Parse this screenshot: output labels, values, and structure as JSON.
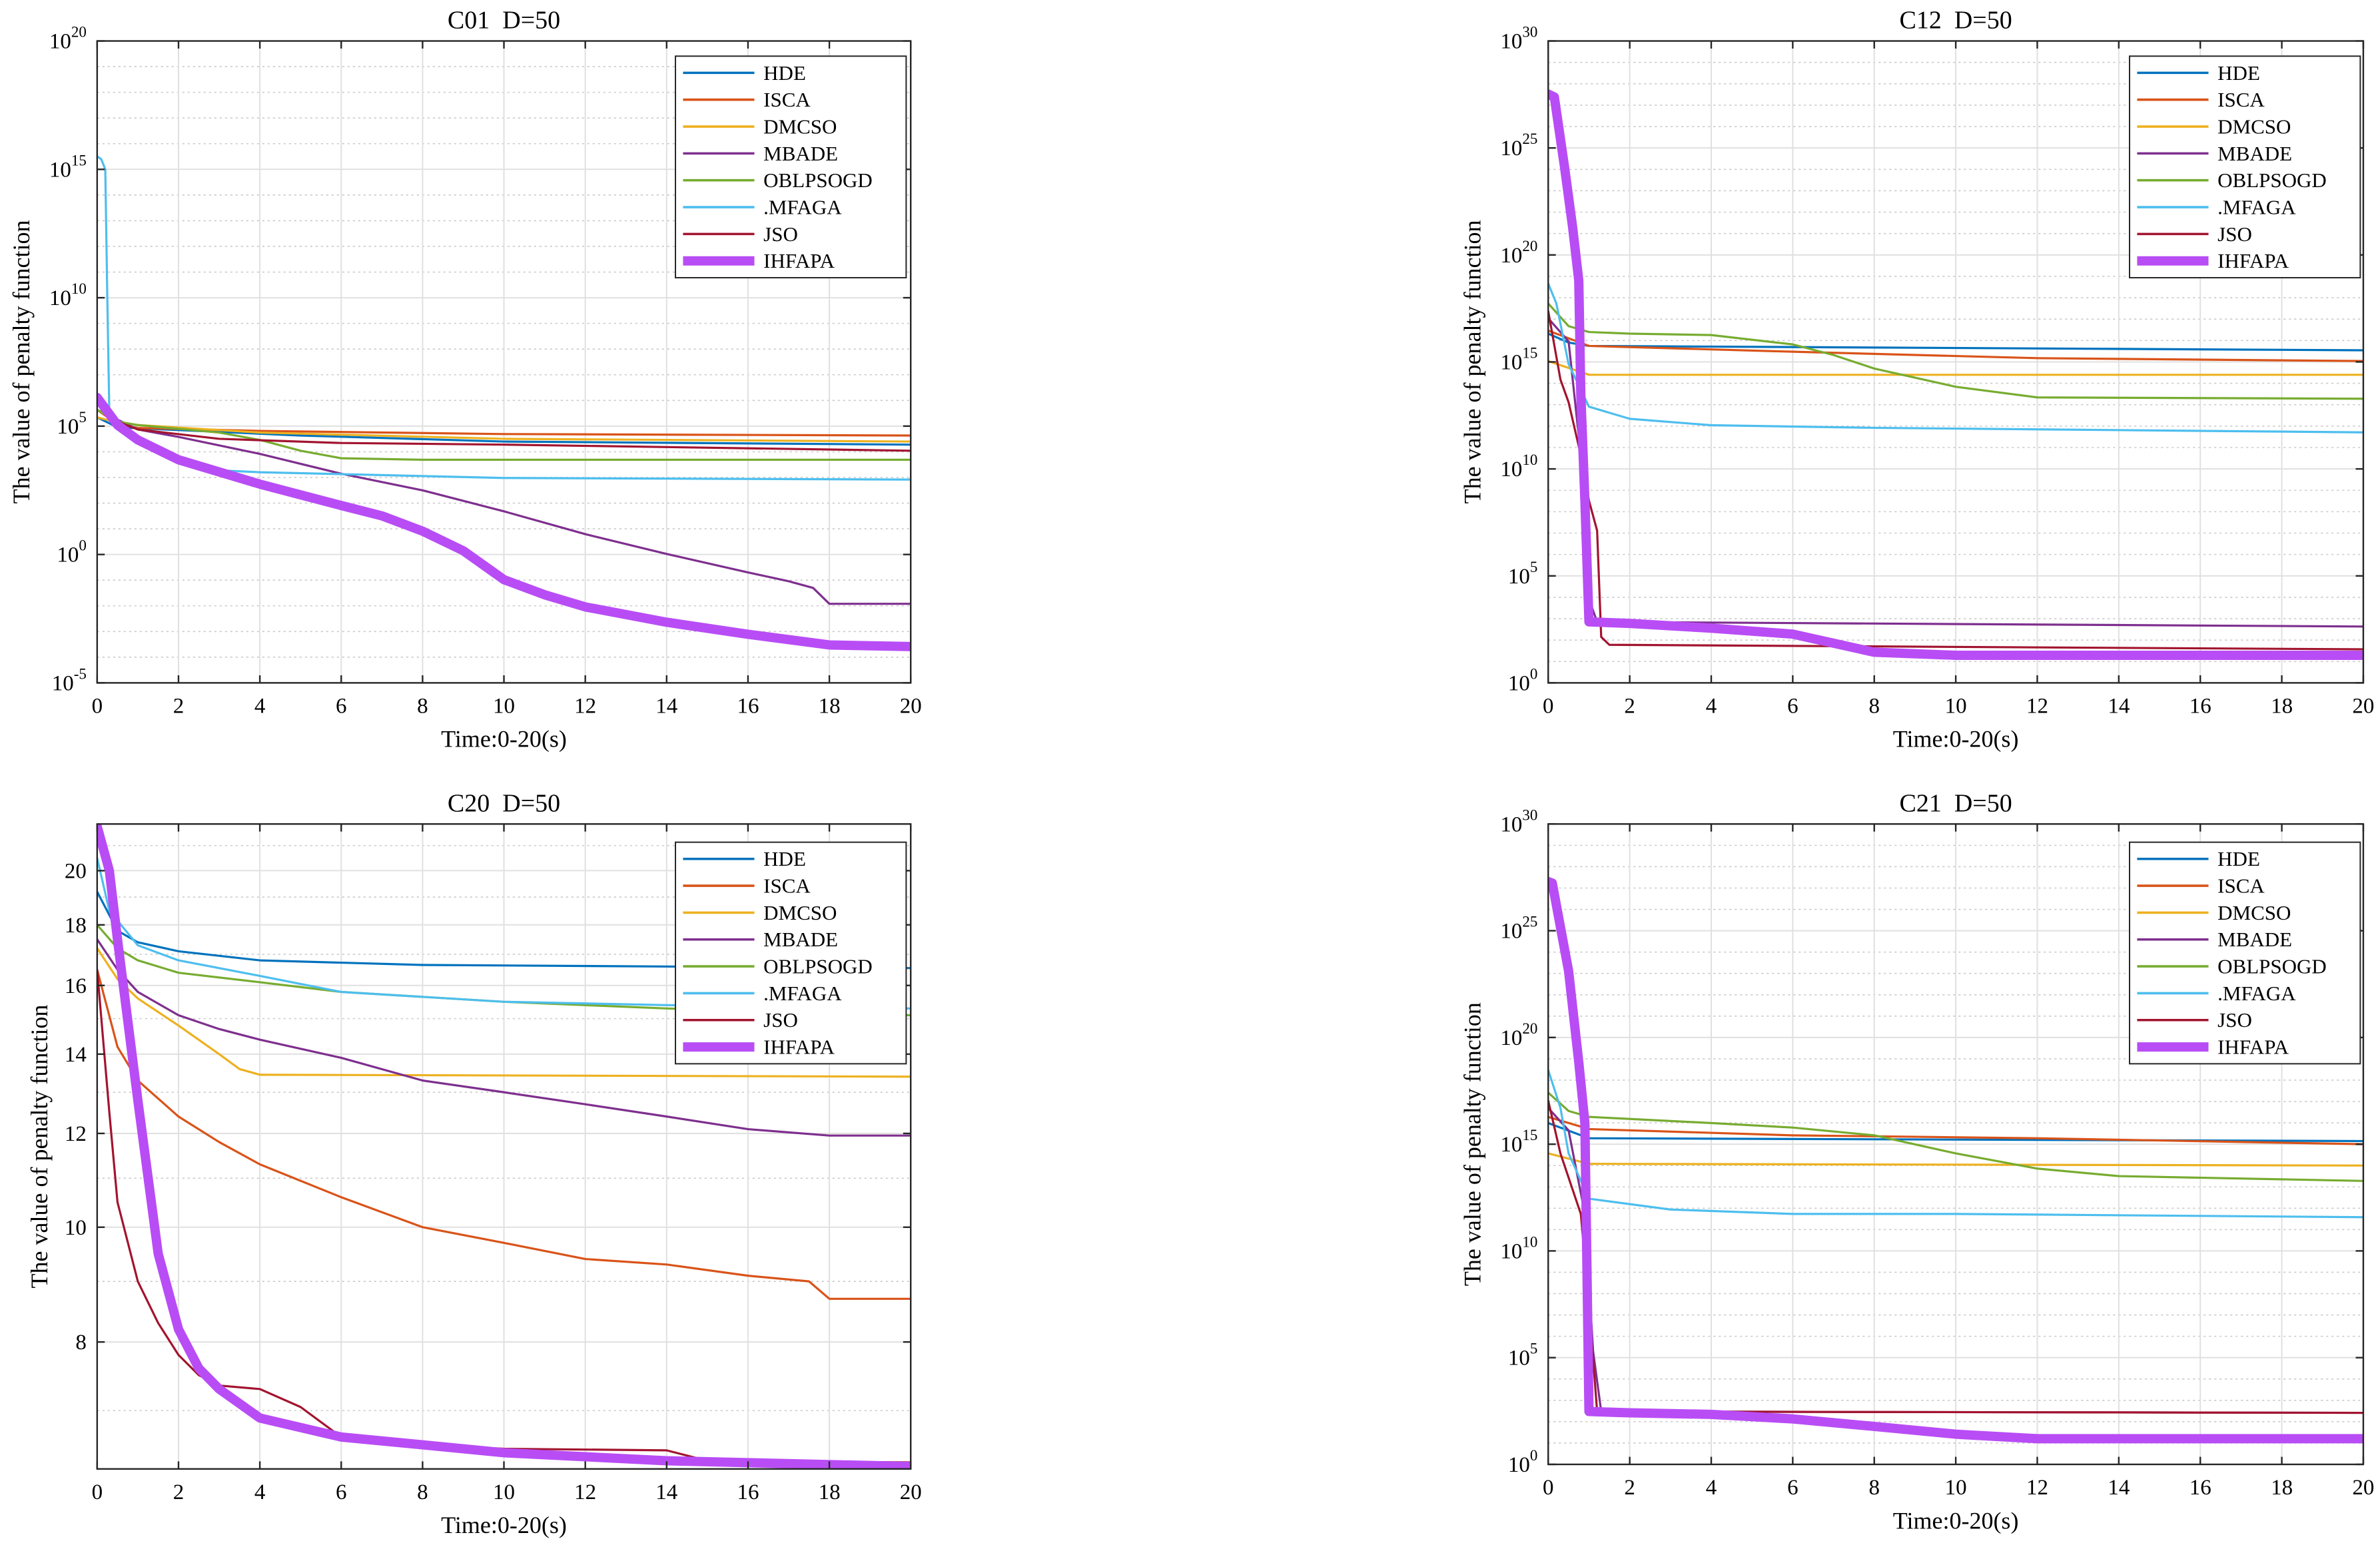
{
  "chart_data": [
    {
      "type": "line",
      "title": "C01  D=50",
      "xlabel": "Time:0-20(s)",
      "ylabel": "The value of penalty function",
      "xlim": [
        0,
        20
      ],
      "xticks": [
        "0",
        "2",
        "4",
        "6",
        "8",
        "10",
        "12",
        "14",
        "16",
        "18",
        "20"
      ],
      "yscale": "log",
      "ylim": [
        1e-05,
        1e+20
      ],
      "yticks": [
        {
          "base": "10",
          "exp": "-5"
        },
        {
          "base": "10",
          "exp": "0"
        },
        {
          "base": "10",
          "exp": "5"
        },
        {
          "base": "10",
          "exp": "10"
        },
        {
          "base": "10",
          "exp": "15"
        },
        {
          "base": "10",
          "exp": "20"
        }
      ],
      "grid": true,
      "legend": "top-right",
      "series": [
        {
          "name": "HDE",
          "color": "#0072BD",
          "x": [
            0,
            0.5,
            2,
            5,
            10,
            20
          ],
          "y": [
            220000.0,
            90000.0,
            70000.0,
            43000.0,
            25000.0,
            19000.0
          ]
        },
        {
          "name": "ISCA",
          "color": "#D95319",
          "x": [
            0,
            0.5,
            1,
            4,
            10,
            20
          ],
          "y": [
            430000.0,
            120000.0,
            85000.0,
            65000.0,
            49000.0,
            43000.0
          ]
        },
        {
          "name": "DMCSO",
          "color": "#EDB120",
          "x": [
            0,
            0.5,
            1,
            4,
            10,
            20
          ],
          "y": [
            220000.0,
            140000.0,
            110000.0,
            56000.0,
            32000.0,
            25000.0
          ]
        },
        {
          "name": "MBADE",
          "color": "#7E2F8E",
          "x": [
            0,
            1,
            2,
            4,
            6,
            8,
            10,
            12,
            14,
            16,
            17,
            17.6,
            18,
            20
          ],
          "y": [
            430000.0,
            74000.0,
            38000.0,
            8300.0,
            1400.0,
            316,
            48,
            6.2,
            1.05,
            0.2,
            0.091,
            0.05,
            0.012,
            0.012
          ]
        },
        {
          "name": "OBLPSOGD",
          "color": "#77AC30",
          "x": [
            0,
            0.5,
            1,
            3,
            4,
            5,
            6,
            8,
            20
          ],
          "y": [
            430000.0,
            150000.0,
            110000.0,
            56000.0,
            29000.0,
            11000.0,
            5600.0,
            4900.0,
            4900.0
          ]
        },
        {
          "name": ".MFAGA",
          "color": "#4DBEEE",
          "x": [
            0,
            0.1,
            0.15,
            0.2,
            0.25,
            0.3,
            0.5,
            1,
            2,
            3,
            4,
            10,
            20
          ],
          "y": [
            3200000000000000.0,
            2500000000000000.0,
            1600000000000000.0,
            1000000000000000.0,
            10000000000.0,
            300000.0,
            80000.0,
            22000.0,
            3700.0,
            1900.0,
            1600.0,
            955,
            830
          ]
        },
        {
          "name": "JSO",
          "color": "#A2142F",
          "x": [
            0,
            0.5,
            1,
            3,
            6,
            10,
            20
          ],
          "y": [
            850000.0,
            150000.0,
            74000.0,
            32000.0,
            22000.0,
            19000.0,
            11000.0
          ]
        },
        {
          "name": "IHFAPA",
          "color": "#B84DF5",
          "x": [
            0,
            0.5,
            1,
            2,
            4,
            6,
            7,
            8,
            9,
            10,
            11,
            12,
            14,
            16,
            18,
            20
          ],
          "y": [
            1300000.0,
            110000.0,
            29000.0,
            4900.0,
            550,
            81,
            32,
            8.1,
            1.4,
            0.105,
            0.027,
            0.0091,
            0.0023,
            0.00078,
            0.0003,
            0.00026
          ]
        }
      ]
    },
    {
      "type": "line",
      "title": "C12  D=50",
      "xlabel": "Time:0-20(s)",
      "ylabel": "The value of penalty function",
      "xlim": [
        0,
        20
      ],
      "xticks": [
        "0",
        "2",
        "4",
        "6",
        "8",
        "10",
        "12",
        "14",
        "16",
        "18",
        "20"
      ],
      "yscale": "log",
      "ylim": [
        1,
        1e+30
      ],
      "yticks": [
        {
          "base": "10",
          "exp": "0"
        },
        {
          "base": "10",
          "exp": "5"
        },
        {
          "base": "10",
          "exp": "10"
        },
        {
          "base": "10",
          "exp": "15"
        },
        {
          "base": "10",
          "exp": "20"
        },
        {
          "base": "10",
          "exp": "25"
        },
        {
          "base": "10",
          "exp": "30"
        }
      ],
      "grid": true,
      "legend": "top-right",
      "series": [
        {
          "name": "HDE",
          "color": "#0072BD",
          "x": [
            0,
            0.5,
            1,
            20
          ],
          "y": [
            2.1e+16,
            8000000000000000.0,
            5600000000000000.0,
            3500000000000000.0
          ]
        },
        {
          "name": "ISCA",
          "color": "#D95319",
          "x": [
            0,
            1,
            6,
            12,
            20
          ],
          "y": [
            2.9e+16,
            5600000000000000.0,
            3000000000000000.0,
            1500000000000000.0,
            1100000000000000.0
          ]
        },
        {
          "name": "DMCSO",
          "color": "#EDB120",
          "x": [
            0,
            1,
            20
          ],
          "y": [
            1100000000000000.0,
            250000000000000.0,
            250000000000000.0
          ]
        },
        {
          "name": "MBADE",
          "color": "#7E2F8E",
          "x": [
            0,
            0.5,
            0.8,
            1,
            1.2,
            20
          ],
          "y": [
            1.1e+17,
            9100000000000000.0,
            44000000000.0,
            8100.0,
            710,
            430
          ]
        },
        {
          "name": "OBLPSOGD",
          "color": "#77AC30",
          "x": [
            0,
            0.5,
            1,
            2,
            4,
            6,
            7,
            8,
            10,
            12,
            20
          ],
          "y": [
            5.4e+17,
            4.7e+16,
            2.5e+16,
            2.1e+16,
            1.8e+16,
            6600000000000000.0,
            2100000000000000.0,
            490000000000000.0,
            69000000000000.0,
            22000000000000.0,
            19000000000000.0
          ]
        },
        {
          "name": ".MFAGA",
          "color": "#4DBEEE",
          "x": [
            0,
            0.2,
            0.5,
            1,
            2,
            4,
            8,
            20
          ],
          "y": [
            4.6e+18,
            5.4e+17,
            790000000000000.0,
            8100000000000.0,
            2200000000000.0,
            1100000000000.0,
            830000000000.0,
            510000000000.0
          ]
        },
        {
          "name": "JSO",
          "color": "#A2142F",
          "x": [
            0,
            0.3,
            0.5,
            0.8,
            1,
            1.2,
            1.3,
            1.5,
            20
          ],
          "y": [
            2.4e+17,
            150000000000000.0,
            13000000000000.0,
            44000000000.0,
            330000000.0,
            13000000.0,
            140,
            60,
            37
          ]
        },
        {
          "name": "IHFAPA",
          "color": "#B84DF5",
          "x": [
            0,
            0.15,
            0.4,
            0.6,
            0.75,
            0.8,
            0.9,
            1,
            2,
            4,
            6,
            8,
            10,
            20
          ],
          "y": [
            3.3e+27,
            2.4e+27,
            1.3e+24,
            1.9e+21,
            6.3e+18,
            30000000000000.0,
            330000000.0,
            710,
            600,
            360,
            190,
            27,
            19.5,
            19.5
          ]
        }
      ]
    },
    {
      "type": "line",
      "title": "C20  D=50",
      "xlabel": "Time:0-20(s)",
      "ylabel": "The value of penalty function",
      "xlim": [
        0,
        20
      ],
      "xticks": [
        "0",
        "2",
        "4",
        "6",
        "8",
        "10",
        "12",
        "14",
        "16",
        "18",
        "20"
      ],
      "yscale": "log",
      "ylim": [
        6.25,
        21.9
      ],
      "yticks": [
        {
          "base": "8"
        },
        {
          "base": "10"
        },
        {
          "base": "12"
        },
        {
          "base": "14"
        },
        {
          "base": "16"
        },
        {
          "base": "18"
        },
        {
          "base": "20"
        }
      ],
      "grid": true,
      "legend": "top-right",
      "series": [
        {
          "name": "HDE",
          "color": "#0072BD",
          "x": [
            0,
            0.5,
            1,
            2,
            4,
            8,
            20
          ],
          "y": [
            19.2,
            17.8,
            17.4,
            17.1,
            16.8,
            16.65,
            16.55
          ]
        },
        {
          "name": "ISCA",
          "color": "#D95319",
          "x": [
            0,
            0.5,
            1,
            2,
            3,
            4,
            6,
            8,
            10,
            12,
            14,
            16,
            17.5,
            18,
            20
          ],
          "y": [
            16.5,
            14.2,
            13.3,
            12.4,
            11.8,
            11.3,
            10.6,
            10.0,
            9.7,
            9.4,
            9.3,
            9.1,
            9.0,
            8.7,
            8.7
          ]
        },
        {
          "name": "DMCSO",
          "color": "#EDB120",
          "x": [
            0,
            0.5,
            1,
            2,
            3,
            3.5,
            4,
            20
          ],
          "y": [
            17.2,
            16.2,
            15.6,
            14.8,
            14.0,
            13.6,
            13.45,
            13.4
          ]
        },
        {
          "name": "MBADE",
          "color": "#7E2F8E",
          "x": [
            0,
            0.5,
            1,
            2,
            3,
            4,
            6,
            8,
            10,
            12,
            14,
            16,
            18,
            20
          ],
          "y": [
            17.5,
            16.5,
            15.8,
            15.1,
            14.7,
            14.4,
            13.9,
            13.3,
            13.0,
            12.7,
            12.4,
            12.1,
            11.95,
            11.95
          ]
        },
        {
          "name": "OBLPSOGD",
          "color": "#77AC30",
          "x": [
            0,
            0.5,
            1,
            2,
            4,
            6,
            10,
            14,
            20
          ],
          "y": [
            18.0,
            17.2,
            16.8,
            16.4,
            16.1,
            15.8,
            15.5,
            15.3,
            15.1
          ]
        },
        {
          "name": ".MFAGA",
          "color": "#4DBEEE",
          "x": [
            0,
            0.3,
            1,
            2,
            4,
            6,
            10,
            14,
            20
          ],
          "y": [
            20.5,
            18.5,
            17.3,
            16.8,
            16.3,
            15.8,
            15.5,
            15.4,
            15.3
          ]
        },
        {
          "name": "JSO",
          "color": "#A2142F",
          "x": [
            0,
            0.3,
            0.5,
            1,
            1.5,
            2,
            2.5,
            3,
            4,
            5,
            6,
            8,
            10,
            14,
            15,
            20
          ],
          "y": [
            16.5,
            12.5,
            10.5,
            9.0,
            8.3,
            7.8,
            7.5,
            7.35,
            7.3,
            7.05,
            6.65,
            6.55,
            6.5,
            6.48,
            6.35,
            6.33
          ]
        },
        {
          "name": "IHFAPA",
          "color": "#B84DF5",
          "x": [
            0,
            0.3,
            0.5,
            1,
            1.5,
            2,
            2.5,
            3,
            4,
            6,
            8,
            10,
            14,
            20
          ],
          "y": [
            21.8,
            20,
            17.5,
            12.8,
            9.5,
            8.2,
            7.6,
            7.3,
            6.9,
            6.65,
            6.55,
            6.45,
            6.35,
            6.28
          ]
        }
      ]
    },
    {
      "type": "line",
      "title": "C21  D=50",
      "xlabel": "Time:0-20(s)",
      "ylabel": "The value of penalty function",
      "xlim": [
        0,
        20
      ],
      "xticks": [
        "0",
        "2",
        "4",
        "6",
        "8",
        "10",
        "12",
        "14",
        "16",
        "18",
        "20"
      ],
      "yscale": "log",
      "ylim": [
        1,
        1e+30
      ],
      "yticks": [
        {
          "base": "10",
          "exp": "0"
        },
        {
          "base": "10",
          "exp": "5"
        },
        {
          "base": "10",
          "exp": "10"
        },
        {
          "base": "10",
          "exp": "15"
        },
        {
          "base": "10",
          "exp": "20"
        },
        {
          "base": "10",
          "exp": "25"
        },
        {
          "base": "10",
          "exp": "30"
        }
      ],
      "grid": true,
      "legend": "top-right",
      "series": [
        {
          "name": "HDE",
          "color": "#0072BD",
          "x": [
            0,
            1,
            20
          ],
          "y": [
            9800000000000000.0,
            1900000000000000.0,
            1400000000000000.0
          ]
        },
        {
          "name": "ISCA",
          "color": "#D95319",
          "x": [
            0,
            1,
            6,
            12,
            20
          ],
          "y": [
            1.9e+16,
            5100000000000000.0,
            2600000000000000.0,
            1900000000000000.0,
            1000000000000000.0
          ]
        },
        {
          "name": "DMCSO",
          "color": "#EDB120",
          "x": [
            0,
            1,
            20
          ],
          "y": [
            370000000000000.0,
            120000000000000.0,
            100000000000000.0
          ]
        },
        {
          "name": "MBADE",
          "color": "#7E2F8E",
          "x": [
            0,
            0.5,
            0.9,
            1.1,
            1.3,
            20
          ],
          "y": [
            5e+16,
            4400000000000000.0,
            540000000000.0,
            210000.0,
            300,
            260
          ]
        },
        {
          "name": "OBLPSOGD",
          "color": "#77AC30",
          "x": [
            0,
            0.5,
            1,
            4,
            6,
            8,
            10,
            12,
            14,
            20
          ],
          "y": [
            2.6e+17,
            3.6e+16,
            1.9e+16,
            9800000000000000.0,
            6000000000000000.0,
            2600000000000000.0,
            370000000000000.0,
            72000000000000.0,
            32000000000000.0,
            19000000000000.0
          ]
        },
        {
          "name": ".MFAGA",
          "color": "#4DBEEE",
          "x": [
            0,
            0.3,
            0.5,
            1,
            3,
            6,
            10,
            20
          ],
          "y": [
            3e+18,
            5e+16,
            370000000000000.0,
            2800000000000.0,
            870000000000.0,
            540000000000.0,
            540000000000.0,
            380000000000.0
          ]
        },
        {
          "name": "JSO",
          "color": "#A2142F",
          "x": [
            0,
            0.3,
            0.8,
            1,
            1.2,
            20
          ],
          "y": [
            1.1e+17,
            370000000000000.0,
            540000000000.0,
            29000000.0,
            300,
            260
          ]
        },
        {
          "name": "IHFAPA",
          "color": "#B84DF5",
          "x": [
            0,
            0.1,
            0.5,
            0.75,
            0.9,
            1,
            2,
            4,
            6,
            8,
            10,
            12,
            20
          ],
          "y": [
            2e+27,
            1.7e+27,
            1.3e+23,
            6.9e+18,
            9800000000000000.0,
            300,
            260,
            220,
            135,
            60,
            26,
            16,
            16
          ]
        }
      ]
    }
  ]
}
